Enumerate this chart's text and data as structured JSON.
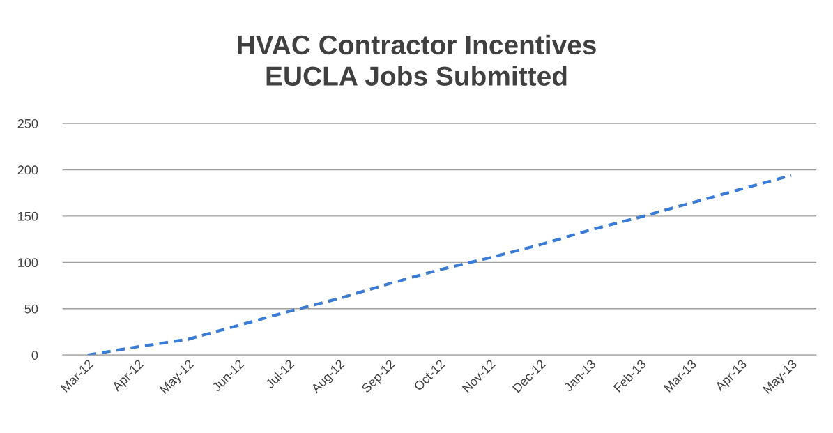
{
  "chart_data": {
    "type": "line",
    "title": "HVAC Contractor Incentives\nEUCLA Jobs Submitted",
    "categories": [
      "Mar-12",
      "Apr-12",
      "May-12",
      "Jun-12",
      "Jul-12",
      "Aug-12",
      "Sep-12",
      "Oct-12",
      "Nov-12",
      "Dec-12",
      "Jan-13",
      "Feb-13",
      "Mar-13",
      "Apr-13",
      "May-13"
    ],
    "series": [
      {
        "color": "#3a7bd5",
        "values": [
          0,
          9,
          17,
          32,
          47,
          61,
          77,
          92,
          105,
          119,
          135,
          149,
          164,
          179,
          194
        ]
      }
    ],
    "ylim": [
      0,
      250
    ],
    "yticks": [
      0,
      50,
      100,
      150,
      200,
      250
    ],
    "grid": "y",
    "line_style": "dashed",
    "marker": "none"
  }
}
